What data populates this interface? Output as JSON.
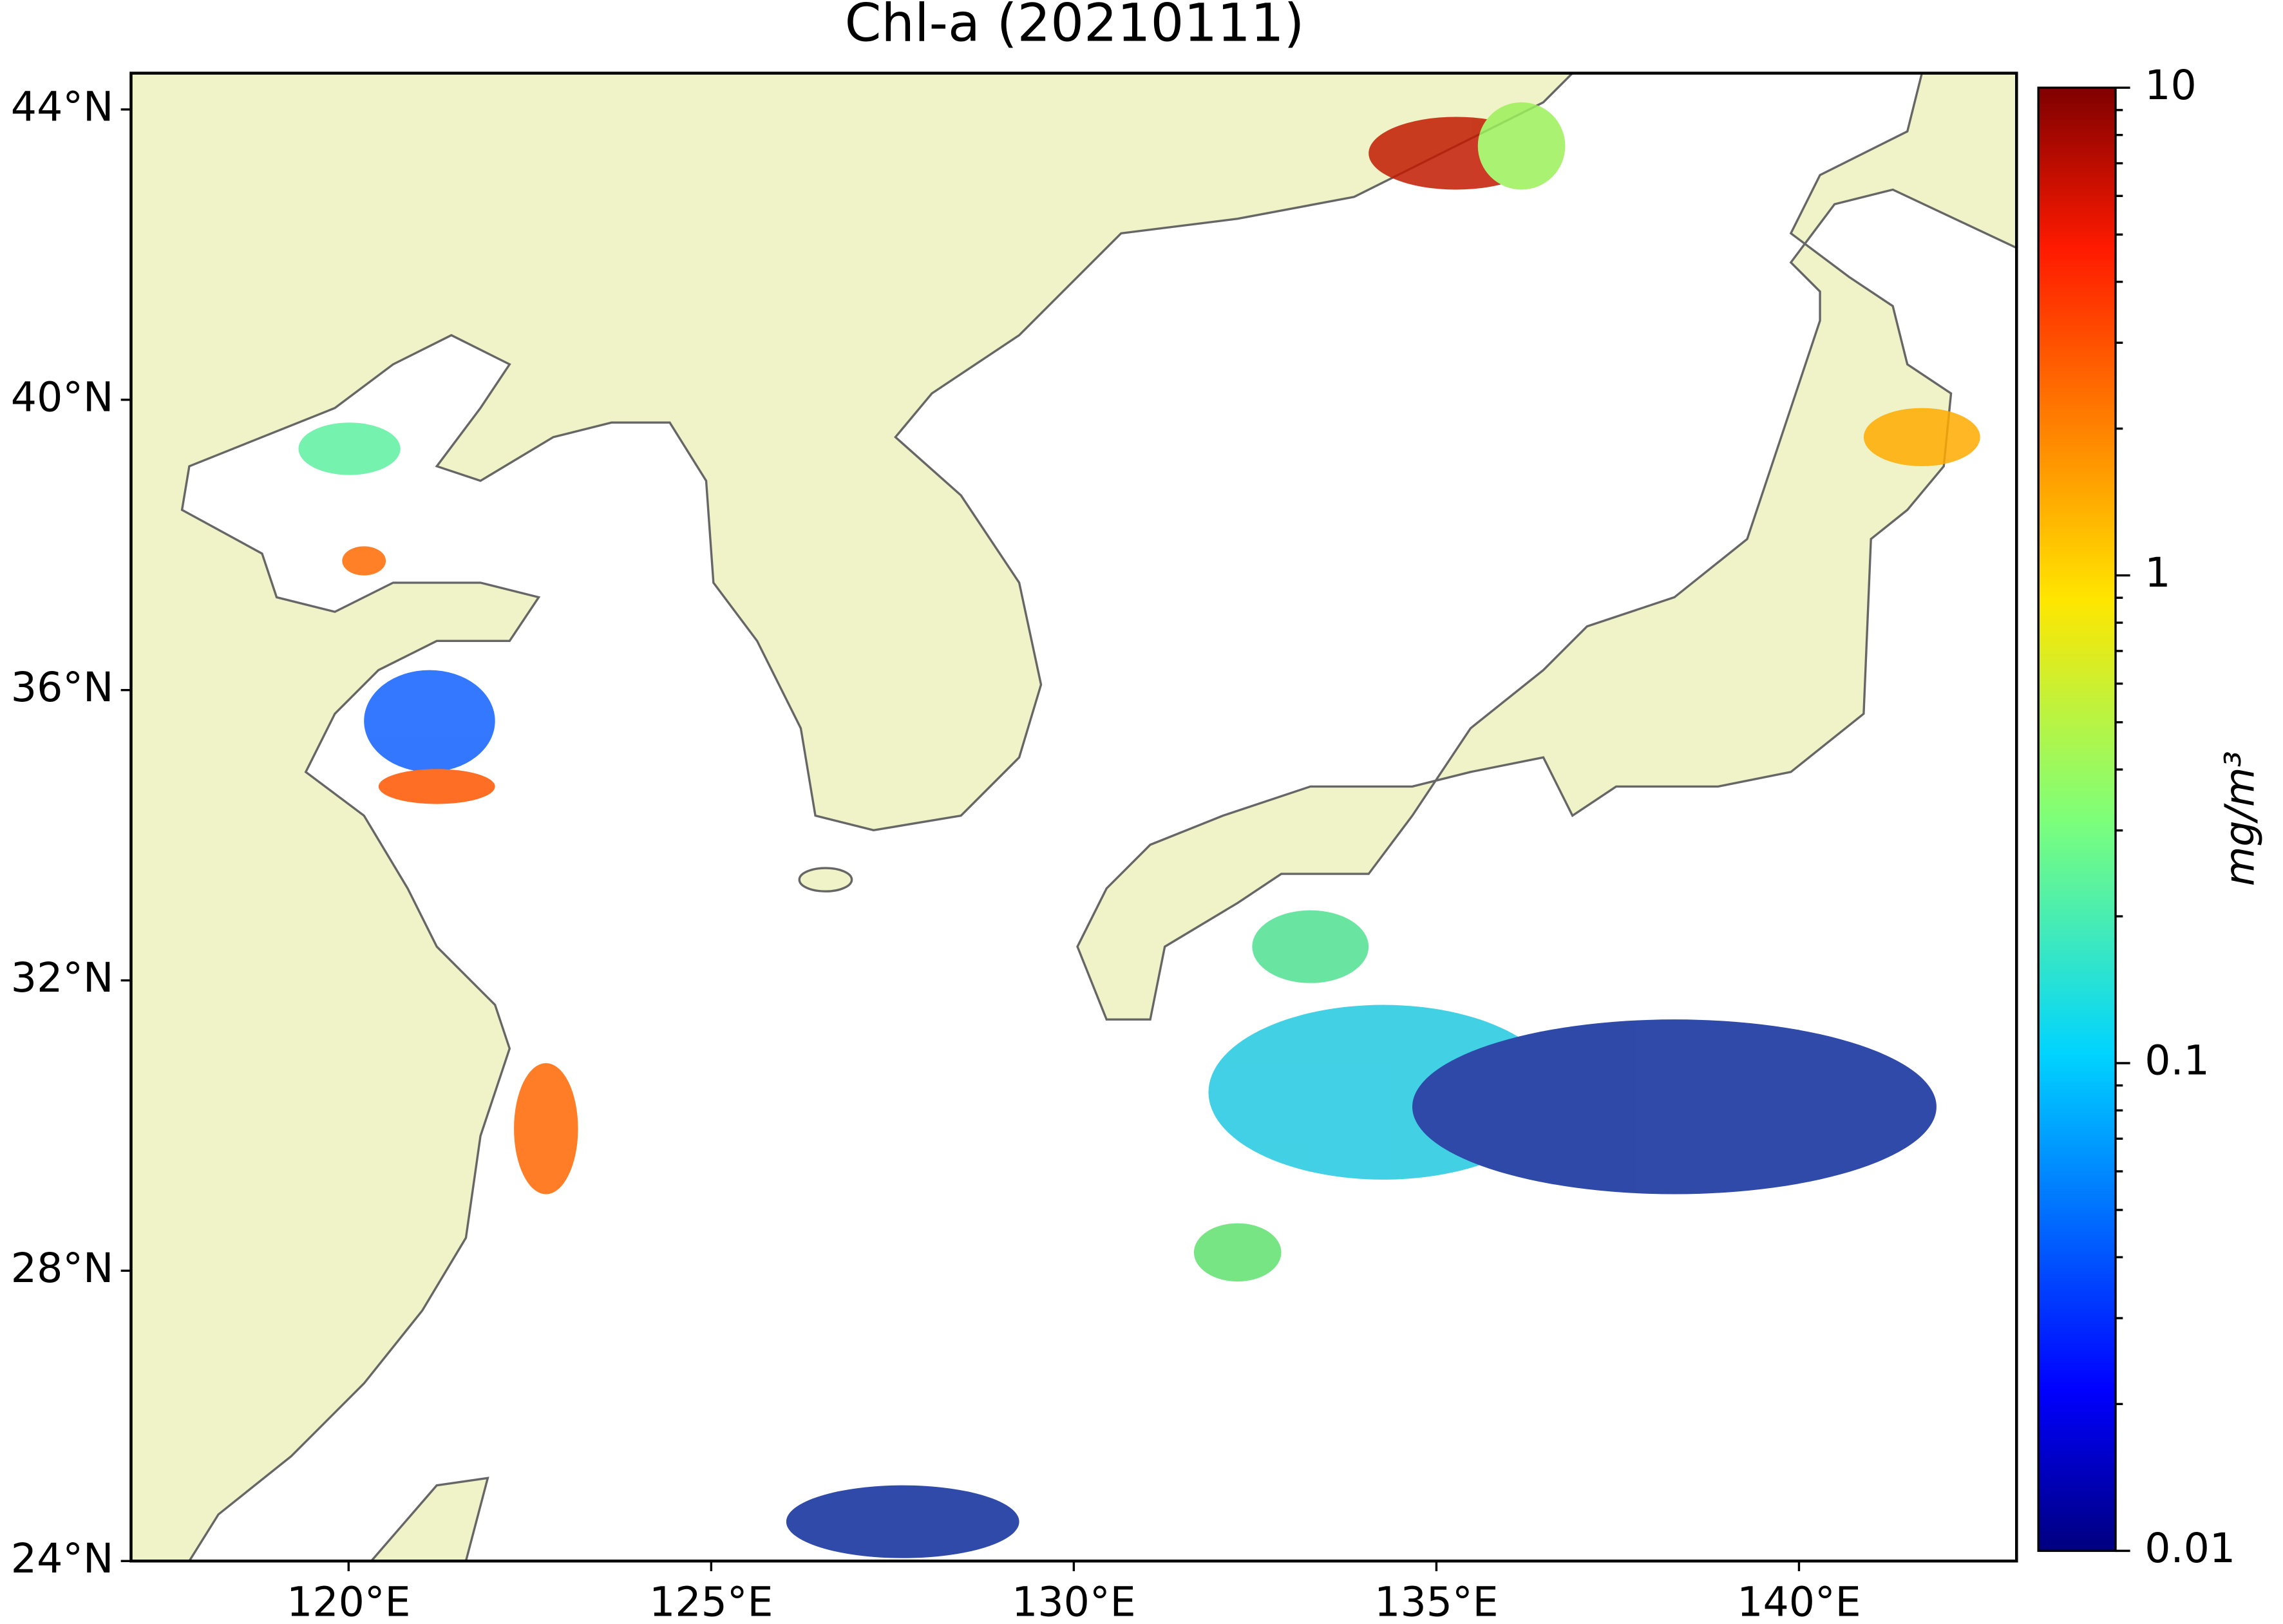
{
  "chart_data": {
    "type": "map",
    "title": "Chl-a (20210111)",
    "xlim": [
      117,
      143
    ],
    "ylim": [
      24,
      44.5
    ],
    "xticks": [
      {
        "value": 120,
        "label": "120°E"
      },
      {
        "value": 125,
        "label": "125°E"
      },
      {
        "value": 130,
        "label": "130°E"
      },
      {
        "value": 135,
        "label": "135°E"
      },
      {
        "value": 140,
        "label": "140°E"
      }
    ],
    "yticks": [
      {
        "value": 24,
        "label": "24°N"
      },
      {
        "value": 28,
        "label": "28°N"
      },
      {
        "value": 32,
        "label": "32°N"
      },
      {
        "value": 36,
        "label": "36°N"
      },
      {
        "value": 40,
        "label": "40°N"
      },
      {
        "value": 44,
        "label": "44°N"
      }
    ],
    "colorbar": {
      "label": "mg/m³",
      "lim": [
        0.01,
        10
      ],
      "ticks": [
        0.01,
        0.1,
        1,
        10
      ],
      "log": true
    }
  }
}
